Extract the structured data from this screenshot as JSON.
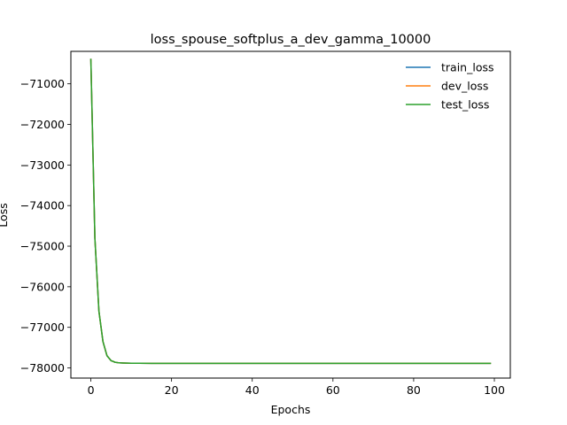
{
  "chart_data": {
    "type": "line",
    "title": "loss_spouse_softplus_a_dev_gamma_10000",
    "xlabel": "Epochs",
    "ylabel": "Loss",
    "xlim": [
      -4.95,
      103.95
    ],
    "ylim": [
      -78250,
      -70200
    ],
    "xticks": [
      0,
      20,
      40,
      60,
      80,
      100
    ],
    "yticks": [
      -78000,
      -77000,
      -76000,
      -75000,
      -74000,
      -73000,
      -72000,
      -71000
    ],
    "xtick_labels": [
      "0",
      "20",
      "40",
      "60",
      "80",
      "100"
    ],
    "ytick_labels": [
      "−78000",
      "−77000",
      "−76000",
      "−75000",
      "−74000",
      "−73000",
      "−72000",
      "−71000"
    ],
    "grid": false,
    "legend_position": "top-right",
    "x": [
      0,
      1,
      2,
      3,
      4,
      5,
      6,
      7,
      8,
      9,
      10,
      12,
      15,
      20,
      30,
      40,
      50,
      60,
      70,
      80,
      90,
      99
    ],
    "series": [
      {
        "name": "train_loss",
        "color": "#1f77b4",
        "values": [
          -70400,
          -74800,
          -76600,
          -77350,
          -77700,
          -77820,
          -77860,
          -77875,
          -77880,
          -77883,
          -77885,
          -77886,
          -77887,
          -77887,
          -77887,
          -77887,
          -77887,
          -77887,
          -77887,
          -77887,
          -77887,
          -77887
        ]
      },
      {
        "name": "dev_loss",
        "color": "#ff7f0e",
        "values": [
          -70400,
          -74800,
          -76600,
          -77350,
          -77700,
          -77820,
          -77860,
          -77875,
          -77880,
          -77883,
          -77885,
          -77886,
          -77887,
          -77887,
          -77887,
          -77887,
          -77887,
          -77887,
          -77887,
          -77887,
          -77887,
          -77887
        ]
      },
      {
        "name": "test_loss",
        "color": "#2ca02c",
        "values": [
          -70400,
          -74800,
          -76600,
          -77350,
          -77700,
          -77820,
          -77860,
          -77875,
          -77880,
          -77883,
          -77885,
          -77886,
          -77887,
          -77887,
          -77887,
          -77887,
          -77887,
          -77887,
          -77887,
          -77887,
          -77887,
          -77887
        ]
      }
    ]
  }
}
